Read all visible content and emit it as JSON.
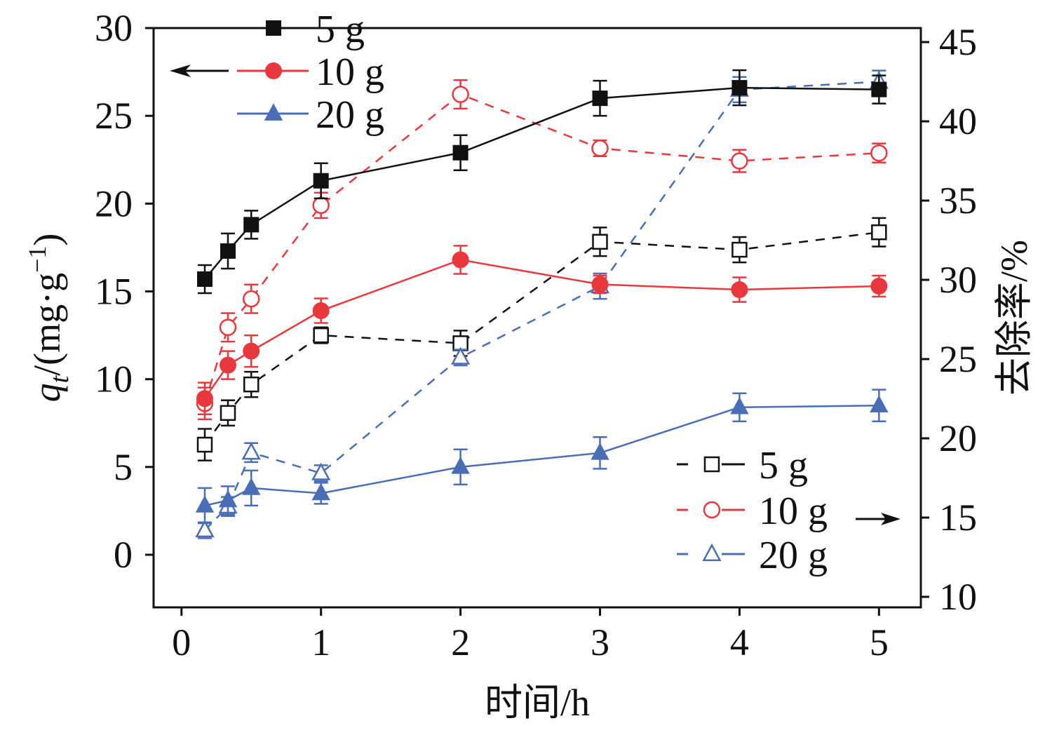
{
  "chart_data": {
    "type": "line",
    "xlabel": "时间/h",
    "ylabel_left": {
      "var": "q",
      "sub": "t",
      "rest": "/(mg·g",
      "sup": "−1",
      "close": ")"
    },
    "ylabel_right": "去除率/%",
    "x_ticks": [
      "0",
      "1",
      "2",
      "3",
      "4",
      "5"
    ],
    "y_left_ticks": [
      "0",
      "5",
      "10",
      "15",
      "20",
      "25",
      "30"
    ],
    "y_right_ticks": [
      "10",
      "15",
      "20",
      "25",
      "30",
      "35",
      "40",
      "45"
    ],
    "xlim": [
      -0.2,
      5.3
    ],
    "ylim_left": [
      -3,
      30
    ],
    "ylim_right": [
      10,
      45
    ],
    "x": [
      0.167,
      0.333,
      0.5,
      1,
      2,
      3,
      4,
      5
    ],
    "series": [
      {
        "name": "5 g",
        "axis": "left",
        "marker": "square",
        "filled": true,
        "dashed": false,
        "color": "#111111",
        "values": [
          15.7,
          17.3,
          18.8,
          21.3,
          22.9,
          26.0,
          26.6,
          26.5
        ],
        "errors": [
          0.8,
          1.0,
          0.8,
          1.0,
          1.0,
          1.0,
          1.0,
          0.8
        ]
      },
      {
        "name": "10 g",
        "axis": "left",
        "marker": "circle",
        "filled": true,
        "dashed": false,
        "color": "#e8383d",
        "values": [
          8.9,
          10.8,
          11.6,
          13.9,
          16.8,
          15.4,
          15.1,
          15.3
        ],
        "errors": [
          0.9,
          0.8,
          0.9,
          0.7,
          0.8,
          0.5,
          0.7,
          0.6
        ]
      },
      {
        "name": "20 g",
        "axis": "left",
        "marker": "triangle",
        "filled": true,
        "dashed": false,
        "color": "#4a6eb5",
        "values": [
          2.8,
          3.1,
          3.8,
          3.5,
          5.0,
          5.8,
          8.4,
          8.5
        ],
        "errors": [
          1.0,
          0.8,
          1.0,
          0.6,
          1.0,
          0.9,
          0.8,
          0.9
        ]
      },
      {
        "name": "5 g",
        "axis": "right",
        "marker": "square",
        "filled": false,
        "dashed": true,
        "color": "#111111",
        "values": [
          19.6,
          21.6,
          23.4,
          26.5,
          26.0,
          32.4,
          31.9,
          33.0
        ],
        "errors": [
          1.0,
          0.8,
          0.8,
          0.5,
          0.8,
          0.9,
          0.8,
          0.9
        ]
      },
      {
        "name": "10 g",
        "axis": "right",
        "marker": "circle",
        "filled": false,
        "dashed": true,
        "color": "#e8383d",
        "values": [
          22.2,
          27.0,
          28.8,
          34.7,
          41.7,
          38.3,
          37.5,
          38.0
        ],
        "errors": [
          1.0,
          0.9,
          0.9,
          0.8,
          0.9,
          0.5,
          0.7,
          0.6
        ]
      },
      {
        "name": "20 g",
        "axis": "right",
        "marker": "triangle",
        "filled": false,
        "dashed": true,
        "color": "#4a6eb5",
        "values": [
          14.2,
          15.7,
          19.1,
          17.8,
          25.1,
          29.6,
          42.0,
          42.5
        ],
        "errors": [
          0.5,
          0.6,
          0.6,
          0.5,
          0.5,
          0.8,
          0.8,
          0.7
        ]
      }
    ],
    "legend_left": {
      "labels": [
        "5 g",
        "10 g",
        "20 g"
      ],
      "placement": "top-left",
      "arrow": "points-to-left-axis"
    },
    "legend_right": {
      "labels": [
        "5 g",
        "10 g",
        "20 g"
      ],
      "placement": "bottom-right",
      "arrow": "points-to-right-axis"
    }
  }
}
